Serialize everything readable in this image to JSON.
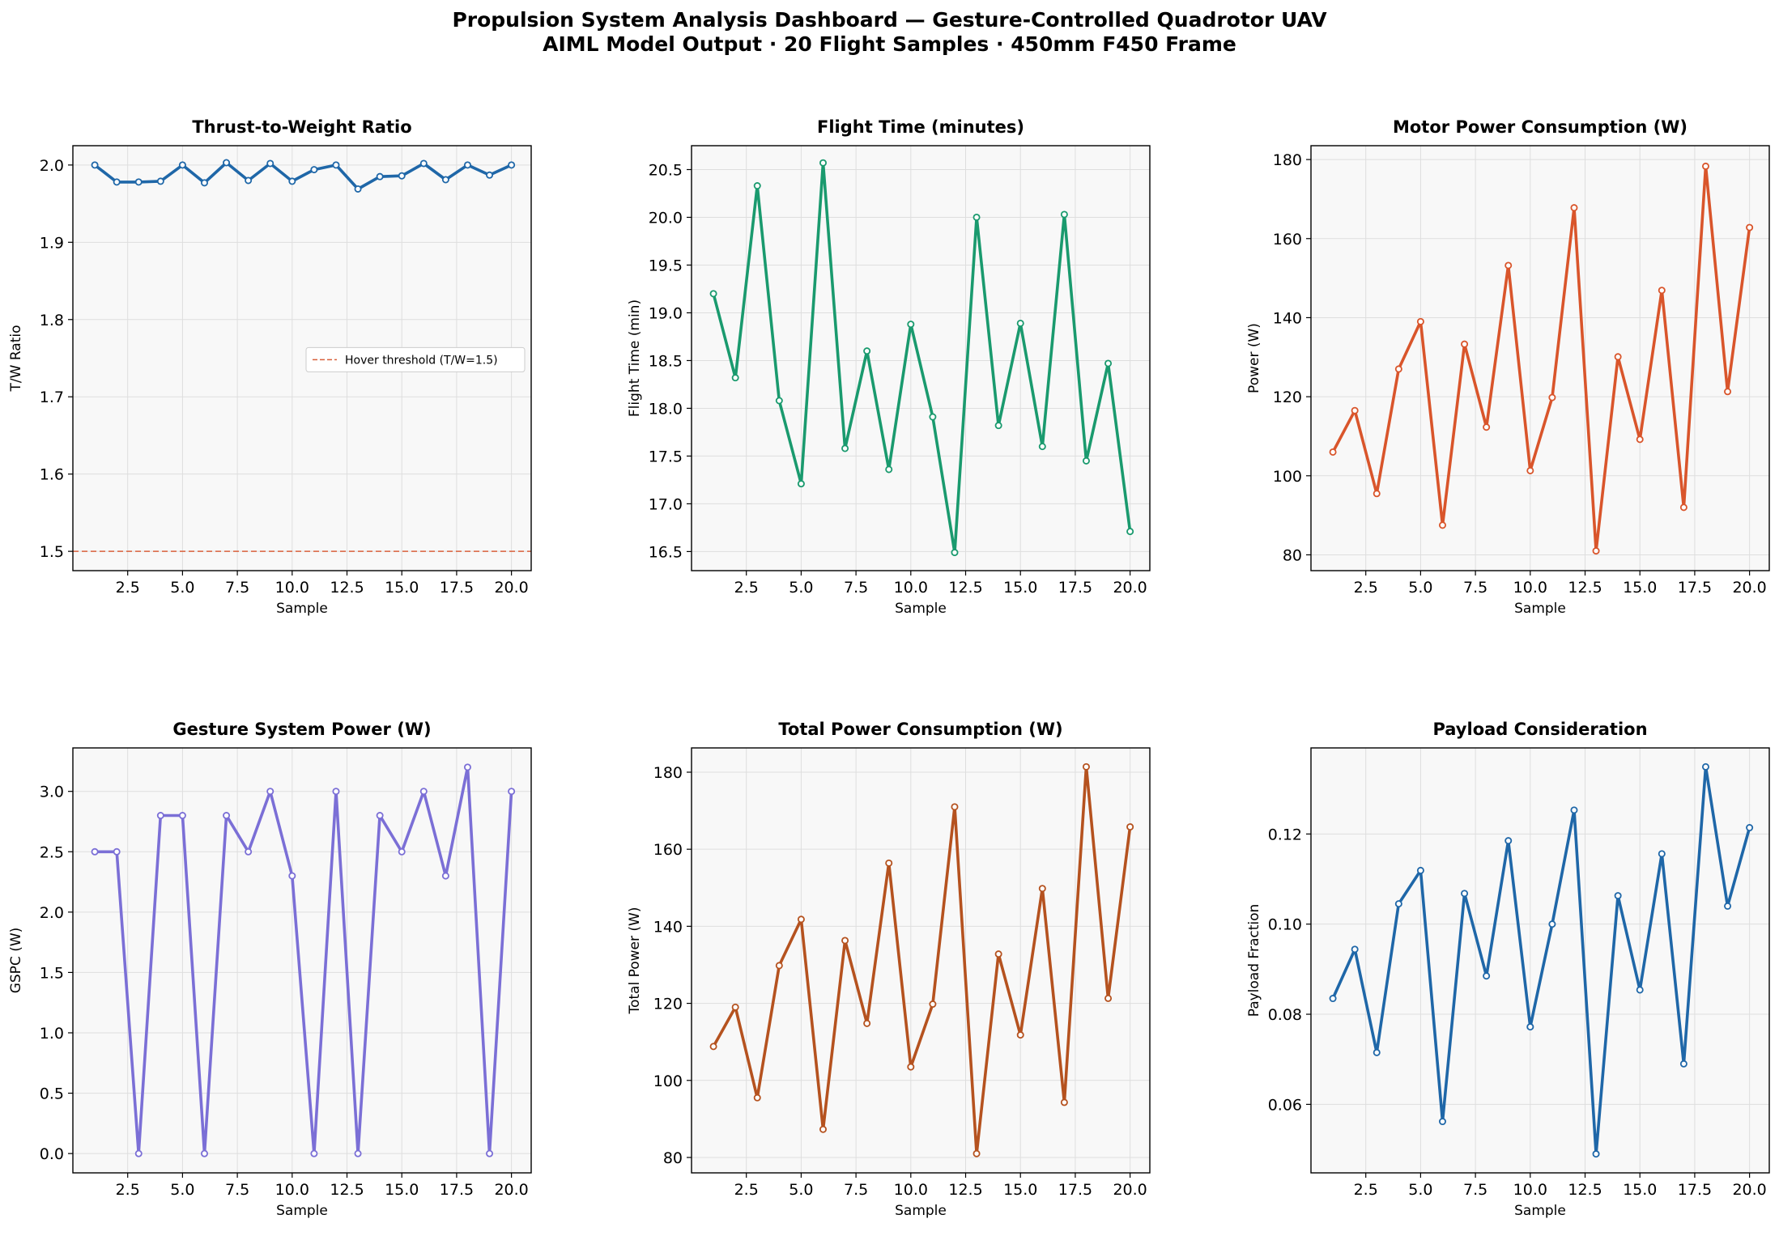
{
  "figure": {
    "title_line1": "Propulsion System Analysis Dashboard — Gesture-Controlled Quadrotor UAV",
    "title_line2": "AIML Model Output  ·  20 Flight Samples  ·  450mm F450 Frame"
  },
  "chart_data": [
    {
      "type": "line",
      "title": "Thrust-to-Weight Ratio",
      "xlabel": "Sample",
      "ylabel": "T/W Ratio",
      "color": "#1f67a8",
      "x": [
        1,
        2,
        3,
        4,
        5,
        6,
        7,
        8,
        9,
        10,
        11,
        12,
        13,
        14,
        15,
        16,
        17,
        18,
        19,
        20
      ],
      "values": [
        2.0,
        1.978,
        1.978,
        1.979,
        2.0,
        1.977,
        2.003,
        1.98,
        2.002,
        1.979,
        1.994,
        2.0,
        1.969,
        1.985,
        1.986,
        2.002,
        1.981,
        2.0,
        1.987,
        2.0
      ],
      "xlim": [
        -0.0,
        20.9
      ],
      "ylim": [
        1.475,
        2.025
      ],
      "xticks": [
        2.5,
        5.0,
        7.5,
        10.0,
        12.5,
        15.0,
        17.5,
        20.0
      ],
      "xticklabels": [
        "2.5",
        "5.0",
        "7.5",
        "10.0",
        "12.5",
        "15.0",
        "17.5",
        "20.0"
      ],
      "yticks": [
        1.5,
        1.6,
        1.7,
        1.8,
        1.9,
        2.0
      ],
      "yticklabels": [
        "1.5",
        "1.6",
        "1.7",
        "1.8",
        "1.9",
        "2.0"
      ],
      "hline": {
        "y": 1.5,
        "color": "#d9603b",
        "label": "Hover threshold (T/W=1.5)"
      },
      "legend": "center-right",
      "grid": true
    },
    {
      "type": "line",
      "title": "Flight Time (minutes)",
      "xlabel": "Sample",
      "ylabel": "Flight Time (min)",
      "color": "#1a9a6e",
      "x": [
        1,
        2,
        3,
        4,
        5,
        6,
        7,
        8,
        9,
        10,
        11,
        12,
        13,
        14,
        15,
        16,
        17,
        18,
        19,
        20
      ],
      "values": [
        19.2,
        18.32,
        20.33,
        18.08,
        17.21,
        20.57,
        17.58,
        18.6,
        17.36,
        18.88,
        17.91,
        16.49,
        20.0,
        17.82,
        18.89,
        17.6,
        20.03,
        17.45,
        18.47,
        16.71
      ],
      "xlim": [
        -0.0,
        20.9
      ],
      "ylim": [
        16.3,
        20.75
      ],
      "xticks": [
        2.5,
        5.0,
        7.5,
        10.0,
        12.5,
        15.0,
        17.5,
        20.0
      ],
      "xticklabels": [
        "2.5",
        "5.0",
        "7.5",
        "10.0",
        "12.5",
        "15.0",
        "17.5",
        "20.0"
      ],
      "yticks": [
        16.5,
        17.0,
        17.5,
        18.0,
        18.5,
        19.0,
        19.5,
        20.0,
        20.5
      ],
      "yticklabels": [
        "16.5",
        "17.0",
        "17.5",
        "18.0",
        "18.5",
        "19.0",
        "19.5",
        "20.0",
        "20.5"
      ],
      "grid": true
    },
    {
      "type": "line",
      "title": "Motor Power Consumption (W)",
      "xlabel": "Sample",
      "ylabel": "Power (W)",
      "color": "#d9552b",
      "x": [
        1,
        2,
        3,
        4,
        5,
        6,
        7,
        8,
        9,
        10,
        11,
        12,
        13,
        14,
        15,
        16,
        17,
        18,
        19,
        20
      ],
      "values": [
        106,
        116.5,
        95.5,
        127,
        139,
        87.5,
        133.3,
        112.3,
        153.2,
        101.3,
        119.8,
        167.8,
        81,
        130.1,
        109.2,
        146.9,
        92,
        178.3,
        121.3,
        162.8
      ],
      "xlim": [
        -0.0,
        20.9
      ],
      "ylim": [
        76,
        183.5
      ],
      "xticks": [
        2.5,
        5.0,
        7.5,
        10.0,
        12.5,
        15.0,
        17.5,
        20.0
      ],
      "xticklabels": [
        "2.5",
        "5.0",
        "7.5",
        "10.0",
        "12.5",
        "15.0",
        "17.5",
        "20.0"
      ],
      "yticks": [
        80,
        100,
        120,
        140,
        160,
        180
      ],
      "yticklabels": [
        "80",
        "100",
        "120",
        "140",
        "160",
        "180"
      ],
      "grid": true
    },
    {
      "type": "line",
      "title": "Gesture System Power (W)",
      "xlabel": "Sample",
      "ylabel": "GSPC (W)",
      "color": "#7b6fd6",
      "x": [
        1,
        2,
        3,
        4,
        5,
        6,
        7,
        8,
        9,
        10,
        11,
        12,
        13,
        14,
        15,
        16,
        17,
        18,
        19,
        20
      ],
      "values": [
        2.5,
        2.5,
        0,
        2.8,
        2.8,
        0,
        2.8,
        2.5,
        3.0,
        2.3,
        0,
        3.0,
        0,
        2.8,
        2.5,
        3.0,
        2.3,
        3.2,
        0,
        3.0
      ],
      "xlim": [
        -0.0,
        20.9
      ],
      "ylim": [
        -0.16,
        3.36
      ],
      "xticks": [
        2.5,
        5.0,
        7.5,
        10.0,
        12.5,
        15.0,
        17.5,
        20.0
      ],
      "xticklabels": [
        "2.5",
        "5.0",
        "7.5",
        "10.0",
        "12.5",
        "15.0",
        "17.5",
        "20.0"
      ],
      "yticks": [
        0.0,
        0.5,
        1.0,
        1.5,
        2.0,
        2.5,
        3.0
      ],
      "yticklabels": [
        "0.0",
        "0.5",
        "1.0",
        "1.5",
        "2.0",
        "2.5",
        "3.0"
      ],
      "grid": true
    },
    {
      "type": "line",
      "title": "Total Power Consumption (W)",
      "xlabel": "Sample",
      "ylabel": "Total Power (W)",
      "color": "#b5521f",
      "x": [
        1,
        2,
        3,
        4,
        5,
        6,
        7,
        8,
        9,
        10,
        11,
        12,
        13,
        14,
        15,
        16,
        17,
        18,
        19,
        20
      ],
      "values": [
        108.8,
        119,
        95.5,
        129.8,
        141.8,
        87.3,
        136.3,
        114.8,
        156.4,
        103.5,
        119.8,
        171,
        81,
        132.8,
        111.8,
        149.8,
        94.3,
        181.4,
        121.3,
        165.8
      ],
      "xlim": [
        -0.0,
        20.9
      ],
      "ylim": [
        76,
        186.3
      ],
      "xticks": [
        2.5,
        5.0,
        7.5,
        10.0,
        12.5,
        15.0,
        17.5,
        20.0
      ],
      "xticklabels": [
        "2.5",
        "5.0",
        "7.5",
        "10.0",
        "12.5",
        "15.0",
        "17.5",
        "20.0"
      ],
      "yticks": [
        80,
        100,
        120,
        140,
        160,
        180
      ],
      "yticklabels": [
        "80",
        "100",
        "120",
        "140",
        "160",
        "180"
      ],
      "grid": true
    },
    {
      "type": "line",
      "title": "Payload Consideration",
      "xlabel": "Sample",
      "ylabel": "Payload Fraction",
      "color": "#1f67a8",
      "x": [
        1,
        2,
        3,
        4,
        5,
        6,
        7,
        8,
        9,
        10,
        11,
        12,
        13,
        14,
        15,
        16,
        17,
        18,
        19,
        20
      ],
      "values": [
        0.0835,
        0.0944,
        0.0715,
        0.1045,
        0.1119,
        0.0562,
        0.1068,
        0.0885,
        0.1185,
        0.0772,
        0.1,
        0.1253,
        0.049,
        0.1063,
        0.0854,
        0.1156,
        0.069,
        0.1349,
        0.104,
        0.1214
      ],
      "xlim": [
        -0.0,
        20.9
      ],
      "ylim": [
        0.0448,
        0.1391
      ],
      "xticks": [
        2.5,
        5.0,
        7.5,
        10.0,
        12.5,
        15.0,
        17.5,
        20.0
      ],
      "xticklabels": [
        "2.5",
        "5.0",
        "7.5",
        "10.0",
        "12.5",
        "15.0",
        "17.5",
        "20.0"
      ],
      "yticks": [
        0.06,
        0.08,
        0.1,
        0.12
      ],
      "yticklabels": [
        "0.06",
        "0.08",
        "0.10",
        "0.12"
      ],
      "grid": true
    }
  ]
}
